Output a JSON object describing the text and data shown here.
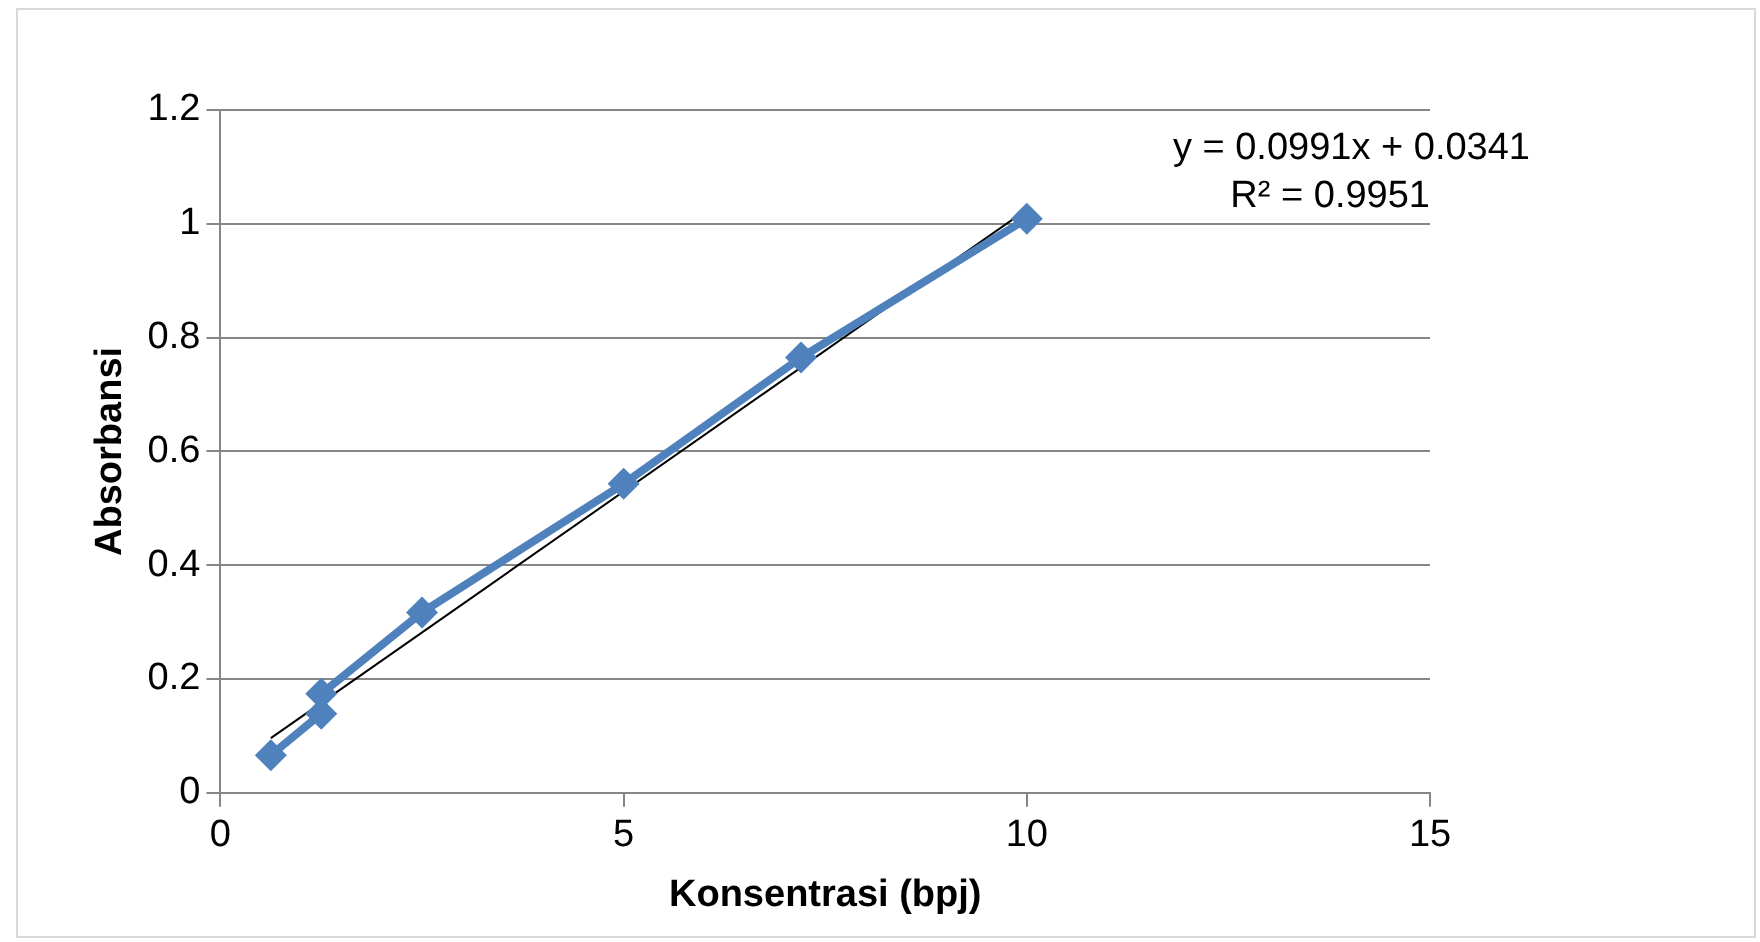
{
  "chart_data": {
    "type": "line",
    "xlabel": "Konsentrasi (bpj)",
    "ylabel": "Absorbansi",
    "xlim": [
      0,
      15
    ],
    "xticks": [
      0,
      5,
      10,
      15
    ],
    "ylim": [
      0,
      1.2
    ],
    "yticks": [
      0,
      0.2,
      0.4,
      0.6,
      0.8,
      1,
      1.2
    ],
    "grid": "y",
    "legend": false,
    "marker": "diamond",
    "series": [
      {
        "color": "#4f81bd",
        "x": [
          0.625,
          1.25,
          1.25,
          2.5,
          5,
          7.2,
          10
        ],
        "values": [
          0.066,
          0.139,
          0.174,
          0.317,
          0.543,
          0.765,
          1.009
        ]
      },
      {
        "type": "line",
        "color": "#000000",
        "marker": "none",
        "x": [
          0.625,
          10
        ],
        "values": [
          0.096,
          1.025
        ]
      }
    ],
    "annotations": [
      "y = 0.0991x + 0.0341",
      "R² = 0.9951"
    ]
  }
}
